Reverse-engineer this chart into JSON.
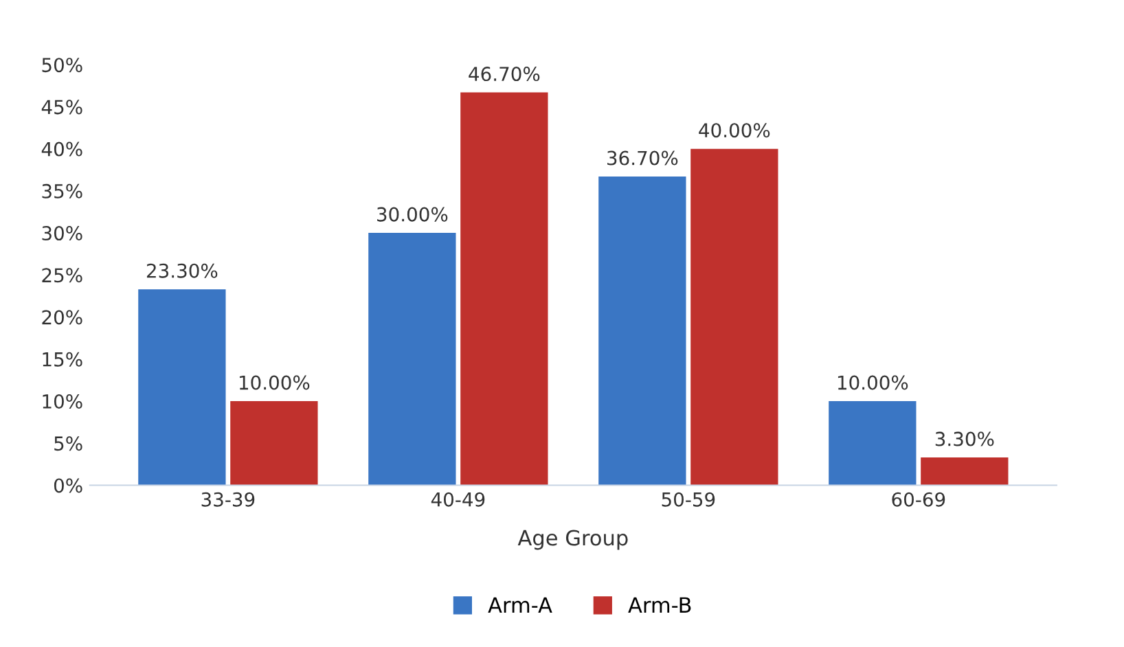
{
  "chart_data": {
    "type": "bar",
    "xlabel": "Age Group",
    "categories": [
      "33-39",
      "40-49",
      "50-59",
      "60-69"
    ],
    "series": [
      {
        "name": "Arm-A",
        "color": "#3a76c4",
        "values": [
          23.3,
          30.0,
          36.7,
          10.0
        ],
        "value_labels": [
          "23.30%",
          "30.00%",
          "36.70%",
          "10.00%"
        ]
      },
      {
        "name": "Arm-B",
        "color": "#c0312d",
        "values": [
          10.0,
          46.7,
          40.0,
          3.3
        ],
        "value_labels": [
          "10.00%",
          "46.70%",
          "40.00%",
          "3.30%"
        ]
      }
    ],
    "ylim": [
      0,
      50
    ],
    "yticks": [
      {
        "value": 0,
        "label": "0%"
      },
      {
        "value": 5,
        "label": "5%"
      },
      {
        "value": 10,
        "label": "10%"
      },
      {
        "value": 15,
        "label": "15%"
      },
      {
        "value": 20,
        "label": "20%"
      },
      {
        "value": 25,
        "label": "25%"
      },
      {
        "value": 30,
        "label": "30%"
      },
      {
        "value": 35,
        "label": "35%"
      },
      {
        "value": 40,
        "label": "40%"
      },
      {
        "value": 45,
        "label": "45%"
      },
      {
        "value": 50,
        "label": "50%"
      }
    ],
    "grid": false,
    "legend": "bottom"
  }
}
